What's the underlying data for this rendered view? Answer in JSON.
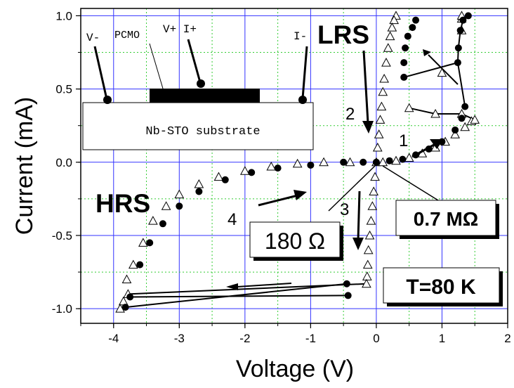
{
  "chart_data": {
    "type": "scatter",
    "xlabel": "Voltage   (V)",
    "ylabel": "Current   (mA)",
    "xlim": [
      -4.5,
      2.0
    ],
    "ylim": [
      -1.1,
      1.05
    ],
    "x_ticks": [
      "-4",
      "-3",
      "-2",
      "-1",
      "0",
      "1",
      "2"
    ],
    "y_ticks": [
      "-1.0",
      "-0.5",
      "0.0",
      "0.5",
      "1.0"
    ],
    "grid": true,
    "series": [
      {
        "marker": "triangle-open",
        "points": [
          [
            0.3,
            1.0
          ],
          [
            0.27,
            0.97
          ],
          [
            0.24,
            0.92
          ],
          [
            0.21,
            0.86
          ],
          [
            0.18,
            0.78
          ],
          [
            0.15,
            0.68
          ],
          [
            0.12,
            0.57
          ],
          [
            0.1,
            0.48
          ],
          [
            0.08,
            0.38
          ],
          [
            0.06,
            0.29
          ],
          [
            0.04,
            0.19
          ],
          [
            0.02,
            0.1
          ],
          [
            0.0,
            0.0
          ],
          [
            0.1,
            0.0
          ],
          [
            0.3,
            0.01
          ],
          [
            0.5,
            0.03
          ],
          [
            0.7,
            0.06
          ],
          [
            0.9,
            0.1
          ],
          [
            1.05,
            0.14
          ],
          [
            1.2,
            0.19
          ],
          [
            1.35,
            0.24
          ],
          [
            1.45,
            0.28
          ],
          [
            1.5,
            0.29
          ],
          [
            1.3,
            0.33
          ],
          [
            0.9,
            0.33
          ],
          [
            0.5,
            0.37
          ],
          [
            1.0,
            0.61
          ],
          [
            1.3,
            0.9
          ],
          [
            1.3,
            0.98
          ],
          [
            1.3,
            1.0
          ],
          [
            -0.02,
            -0.1
          ],
          [
            -0.04,
            -0.2
          ],
          [
            -0.06,
            -0.3
          ],
          [
            -0.08,
            -0.4
          ],
          [
            -0.1,
            -0.5
          ],
          [
            -0.12,
            -0.6
          ],
          [
            -0.13,
            -0.7
          ],
          [
            -0.14,
            -0.78
          ],
          [
            -0.15,
            -0.83
          ],
          [
            -3.78,
            -0.9
          ],
          [
            -3.85,
            -0.95
          ],
          [
            -3.9,
            -1.0
          ],
          [
            -3.8,
            -0.8
          ],
          [
            -3.7,
            -0.7
          ],
          [
            -3.55,
            -0.55
          ],
          [
            -3.4,
            -0.4
          ],
          [
            -3.2,
            -0.3
          ],
          [
            -3.0,
            -0.22
          ],
          [
            -2.7,
            -0.15
          ],
          [
            -2.4,
            -0.1
          ],
          [
            -2.0,
            -0.06
          ],
          [
            -1.6,
            -0.03
          ],
          [
            -1.2,
            -0.01
          ],
          [
            -0.8,
            0.0
          ],
          [
            -0.4,
            0.0
          ]
        ]
      },
      {
        "marker": "circle-filled",
        "points": [
          [
            1.4,
            1.0
          ],
          [
            1.32,
            0.97
          ],
          [
            1.28,
            0.9
          ],
          [
            1.25,
            0.78
          ],
          [
            1.24,
            0.68
          ],
          [
            0.42,
            0.58
          ],
          [
            0.42,
            0.68
          ],
          [
            0.44,
            0.78
          ],
          [
            0.48,
            0.86
          ],
          [
            0.55,
            0.92
          ],
          [
            0.6,
            0.97
          ],
          [
            1.35,
            0.38
          ],
          [
            1.3,
            0.3
          ],
          [
            1.2,
            0.22
          ],
          [
            1.0,
            0.14
          ],
          [
            0.8,
            0.09
          ],
          [
            0.6,
            0.05
          ],
          [
            0.4,
            0.02
          ],
          [
            0.2,
            0.01
          ],
          [
            0.0,
            0.0
          ],
          [
            -0.45,
            -0.83
          ],
          [
            -0.43,
            -0.91
          ],
          [
            -3.75,
            -0.92
          ],
          [
            -3.82,
            -0.99
          ],
          [
            -3.6,
            -0.7
          ],
          [
            -3.45,
            -0.55
          ],
          [
            -3.25,
            -0.42
          ],
          [
            -3.0,
            -0.3
          ],
          [
            -2.7,
            -0.2
          ],
          [
            -2.3,
            -0.12
          ],
          [
            -1.9,
            -0.07
          ],
          [
            -1.5,
            -0.04
          ],
          [
            -1.0,
            -0.02
          ],
          [
            -0.5,
            0.0
          ],
          [
            -0.2,
            0.0
          ]
        ]
      }
    ],
    "annotations": {
      "lrs": "LRS",
      "hrs": "HRS",
      "n1": "1",
      "n2": "2",
      "n3": "3",
      "n4": "4",
      "r_low": "0.7 MΩ",
      "r_high": "180 Ω",
      "temperature": "T=80 K",
      "inset": {
        "v_minus": "V-",
        "pcmo": "PCMO",
        "v_plus_i_plus": "V+ I+",
        "i_minus": "I-",
        "substrate": "Nb-STO substrate"
      }
    }
  }
}
